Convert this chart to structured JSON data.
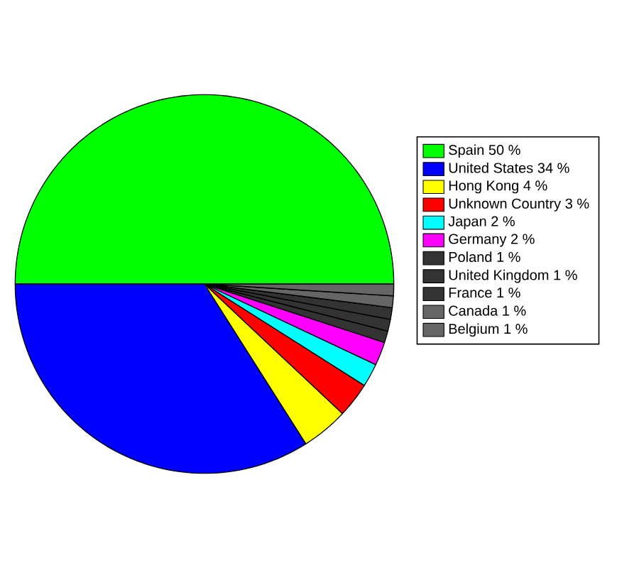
{
  "chart_data": {
    "type": "pie",
    "categories": [
      "Spain 50 %",
      "United States 34 %",
      "Hong Kong 4 %",
      "Unknown Country 3 %",
      "Japan 2 %",
      "Germany 2 %",
      "Poland 1 %",
      "United Kingdom 1 %",
      "France 1 %",
      "Canada 1 %",
      "Belgium 1 %"
    ],
    "values": [
      50,
      34,
      4,
      3,
      2,
      2,
      1,
      1,
      1,
      1,
      1
    ],
    "colors": [
      "#00ff00",
      "#0000ff",
      "#ffff00",
      "#ff0000",
      "#00ffff",
      "#ff00ff",
      "#333333",
      "#333333",
      "#333333",
      "#666666",
      "#666666"
    ],
    "legend": "right"
  }
}
